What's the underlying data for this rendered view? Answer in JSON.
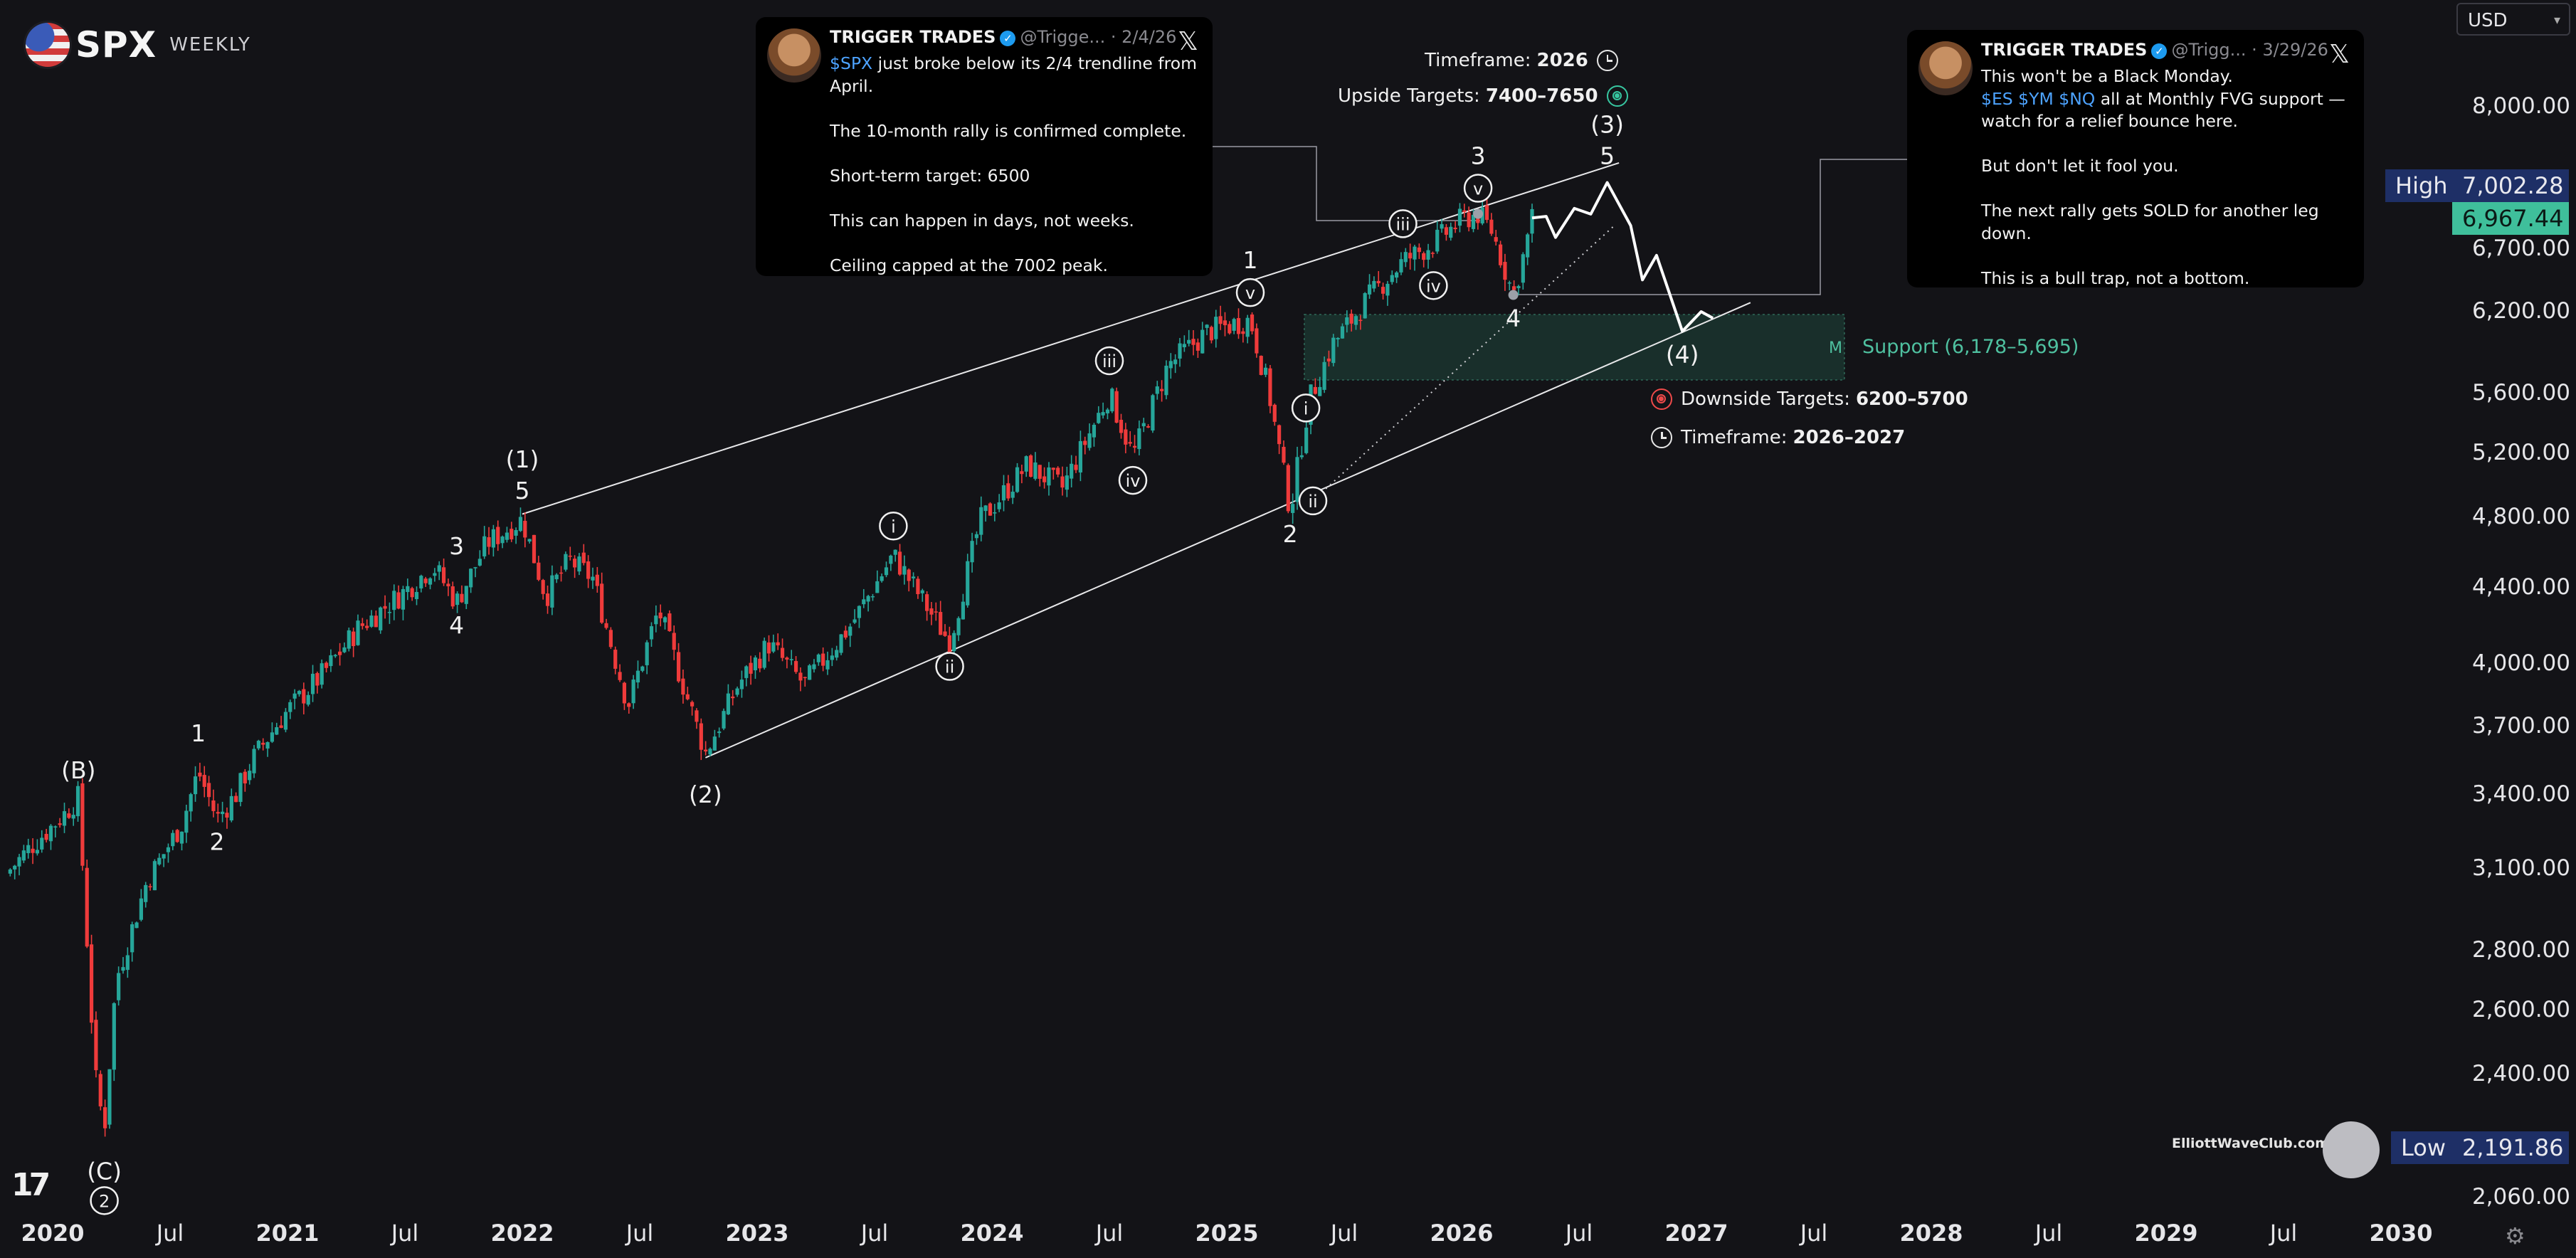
{
  "header": {
    "brand": "SPX",
    "subtitle": "WEEKLY"
  },
  "currency_select": {
    "value": "USD"
  },
  "price_tags": {
    "high_label": "High",
    "high_value": "7,002.28",
    "last_value": "6,967.44",
    "low_label": "Low",
    "low_value": "2,191.86"
  },
  "tweets": [
    {
      "author": "TRIGGER TRADES",
      "handle": "@Trigge...",
      "date": "2/4/26",
      "ticker": "$SPX",
      "text": " just broke below its 2/4 trendline from April.\n\nThe 10-month rally is confirmed complete.\n\nShort-term target: 6500\n\nThis can happen in days, not weeks.\n\nCeiling capped at the 7002 peak."
    },
    {
      "author": "TRIGGER TRADES",
      "handle": "@Trigg...",
      "date": "3/29/26",
      "line1": "This won't be a Black Monday.",
      "tickers": "$ES $YM $NQ",
      "text": " all at Monthly FVG support — watch for a relief bounce here.\n\nBut don't let it fool you.\n\nThe next rally gets SOLD for another leg down.\n\nThis is a bull trap, not a bottom."
    }
  ],
  "annotations": {
    "upside_timeframe_label": "Timeframe:",
    "upside_timeframe_value": "2026",
    "upside_targets_label": "Upside Targets:",
    "upside_targets_value": "7400–7650",
    "downside_targets_label": "Downside Targets:",
    "downside_targets_value": "6200–5700",
    "downside_timeframe_label": "Timeframe:",
    "downside_timeframe_value": "2026–2027",
    "support_label": "Support (6,178–5,695)",
    "support_marker": "M"
  },
  "watermark": {
    "text": "ElliottWaveClub.com"
  },
  "chart_data": {
    "type": "candlestick",
    "title": "SPX",
    "interval": "WEEKLY",
    "currency": "USD",
    "y_scale": "log",
    "y_ticks": [
      2060,
      2400,
      2600,
      2800,
      3100,
      3400,
      3700,
      4000,
      4400,
      4800,
      5200,
      5600,
      6200,
      6700,
      8000
    ],
    "y_tick_labels": [
      "2,060.00",
      "2,400.00",
      "2,600.00",
      "2,800.00",
      "3,100.00",
      "3,400.00",
      "3,700.00",
      "4,000.00",
      "4,400.00",
      "4,800.00",
      "5,200.00",
      "5,600.00",
      "6,200.00",
      "6,700.00",
      "8,000.00"
    ],
    "x_ticks": [
      {
        "t": 2020.0,
        "label": "2020",
        "year": true
      },
      {
        "t": 2020.5,
        "label": "Jul"
      },
      {
        "t": 2021.0,
        "label": "2021",
        "year": true
      },
      {
        "t": 2021.5,
        "label": "Jul"
      },
      {
        "t": 2022.0,
        "label": "2022",
        "year": true
      },
      {
        "t": 2022.5,
        "label": "Jul"
      },
      {
        "t": 2023.0,
        "label": "2023",
        "year": true
      },
      {
        "t": 2023.5,
        "label": "Jul"
      },
      {
        "t": 2024.0,
        "label": "2024",
        "year": true
      },
      {
        "t": 2024.5,
        "label": "Jul"
      },
      {
        "t": 2025.0,
        "label": "2025",
        "year": true
      },
      {
        "t": 2025.5,
        "label": "Jul"
      },
      {
        "t": 2026.0,
        "label": "2026",
        "year": true
      },
      {
        "t": 2026.5,
        "label": "Jul"
      },
      {
        "t": 2027.0,
        "label": "2027",
        "year": true
      },
      {
        "t": 2027.5,
        "label": "Jul"
      },
      {
        "t": 2028.0,
        "label": "2028",
        "year": true
      },
      {
        "t": 2028.5,
        "label": "Jul"
      },
      {
        "t": 2029.0,
        "label": "2029",
        "year": true
      },
      {
        "t": 2029.5,
        "label": "Jul"
      },
      {
        "t": 2030.0,
        "label": "2030",
        "year": true
      }
    ],
    "price_path": [
      [
        2019.8,
        3080
      ],
      [
        2019.92,
        3200
      ],
      [
        2020.05,
        3320
      ],
      [
        2020.11,
        3390
      ],
      [
        2020.18,
        2400
      ],
      [
        2020.22,
        2240
      ],
      [
        2020.27,
        2700
      ],
      [
        2020.4,
        3050
      ],
      [
        2020.55,
        3280
      ],
      [
        2020.62,
        3500
      ],
      [
        2020.7,
        3300
      ],
      [
        2020.78,
        3400
      ],
      [
        2020.85,
        3550
      ],
      [
        2020.98,
        3750
      ],
      [
        2021.15,
        3950
      ],
      [
        2021.3,
        4180
      ],
      [
        2021.5,
        4380
      ],
      [
        2021.62,
        4520
      ],
      [
        2021.72,
        4320
      ],
      [
        2021.85,
        4650
      ],
      [
        2022.0,
        4790
      ],
      [
        2022.1,
        4350
      ],
      [
        2022.2,
        4550
      ],
      [
        2022.3,
        4450
      ],
      [
        2022.45,
        3800
      ],
      [
        2022.58,
        4280
      ],
      [
        2022.78,
        3580
      ],
      [
        2022.92,
        3900
      ],
      [
        2023.05,
        4100
      ],
      [
        2023.2,
        3900
      ],
      [
        2023.4,
        4200
      ],
      [
        2023.58,
        4580
      ],
      [
        2023.82,
        4110
      ],
      [
        2023.95,
        4780
      ],
      [
        2024.15,
        5120
      ],
      [
        2024.3,
        4980
      ],
      [
        2024.5,
        5600
      ],
      [
        2024.6,
        5180
      ],
      [
        2024.75,
        5800
      ],
      [
        2024.92,
        6050
      ],
      [
        2025.1,
        6140
      ],
      [
        2025.18,
        5600
      ],
      [
        2025.27,
        4840
      ],
      [
        2025.35,
        5550
      ],
      [
        2025.45,
        5950
      ],
      [
        2025.6,
        6300
      ],
      [
        2025.75,
        6600
      ],
      [
        2025.88,
        6750
      ],
      [
        2026.0,
        6950
      ],
      [
        2026.07,
        7002
      ],
      [
        2026.13,
        6850
      ],
      [
        2026.22,
        6330
      ],
      [
        2026.27,
        6700
      ],
      [
        2026.3,
        6967
      ]
    ],
    "projection_path": [
      [
        2026.3,
        6967
      ],
      [
        2026.36,
        6980
      ],
      [
        2026.4,
        6800
      ],
      [
        2026.48,
        7050
      ],
      [
        2026.55,
        7000
      ],
      [
        2026.62,
        7280
      ],
      [
        2026.72,
        6900
      ],
      [
        2026.77,
        6450
      ],
      [
        2026.83,
        6650
      ],
      [
        2026.94,
        6050
      ],
      [
        2027.02,
        6200
      ],
      [
        2027.07,
        6150
      ]
    ],
    "trendlines": [
      {
        "from": [
          2022.0,
          4820
        ],
        "to": [
          2026.67,
          7460
        ]
      },
      {
        "from": [
          2022.78,
          3560
        ],
        "to": [
          2027.23,
          6270
        ]
      },
      {
        "from": [
          2025.35,
          4880
        ],
        "to": [
          2026.65,
          6900
        ],
        "style": "dotted"
      }
    ],
    "support_zone": {
      "from": 2025.33,
      "to": 2027.63,
      "low": 5695,
      "high": 6178
    },
    "wave_labels": [
      {
        "t": 2020.11,
        "p": 3390,
        "text": "(B)",
        "pos": "above"
      },
      {
        "t": 2020.22,
        "p": 2191,
        "text": "(C)",
        "pos": "below"
      },
      {
        "t": 2020.22,
        "p": 2191,
        "text": "2",
        "pos": "below2",
        "circled": true
      },
      {
        "t": 2020.62,
        "p": 3550,
        "text": "1",
        "pos": "above"
      },
      {
        "t": 2020.7,
        "p": 3300,
        "text": "2",
        "pos": "below"
      },
      {
        "t": 2021.72,
        "p": 4480,
        "text": "3",
        "pos": "above"
      },
      {
        "t": 2021.72,
        "p": 4320,
        "text": "4",
        "pos": "below"
      },
      {
        "t": 2022.0,
        "p": 4800,
        "text": "(1)",
        "pos": "above2"
      },
      {
        "t": 2022.0,
        "p": 4800,
        "text": "5",
        "pos": "above"
      },
      {
        "t": 2022.78,
        "p": 3500,
        "text": "(2)",
        "pos": "below"
      },
      {
        "t": 2023.58,
        "p": 4600,
        "text": "i",
        "pos": "above",
        "circled": true
      },
      {
        "t": 2023.82,
        "p": 4110,
        "text": "ii",
        "pos": "below",
        "circled": true
      },
      {
        "t": 2024.5,
        "p": 5650,
        "text": "iii",
        "pos": "above",
        "circled": true
      },
      {
        "t": 2024.6,
        "p": 5180,
        "text": "iv",
        "pos": "below",
        "circled": true
      },
      {
        "t": 2025.1,
        "p": 6150,
        "text": "v",
        "pos": "above",
        "circled": true
      },
      {
        "t": 2025.1,
        "p": 6150,
        "text": "1",
        "pos": "above2"
      },
      {
        "t": 2025.27,
        "p": 5500,
        "text": "i",
        "pos": "right",
        "circled": true
      },
      {
        "t": 2025.3,
        "p": 4900,
        "text": "ii",
        "pos": "right",
        "circled": true
      },
      {
        "t": 2025.27,
        "p": 4840,
        "text": "2",
        "pos": "below"
      },
      {
        "t": 2025.75,
        "p": 6700,
        "text": "iii",
        "pos": "above",
        "circled": true
      },
      {
        "t": 2025.88,
        "p": 6600,
        "text": "iv",
        "pos": "below",
        "circled": true
      },
      {
        "t": 2026.07,
        "p": 7002,
        "text": "v",
        "pos": "above",
        "circled": true
      },
      {
        "t": 2026.07,
        "p": 7002,
        "text": "3",
        "pos": "above2"
      },
      {
        "t": 2026.22,
        "p": 6330,
        "text": "4",
        "pos": "below"
      },
      {
        "t": 2026.62,
        "p": 7280,
        "text": "5",
        "pos": "above"
      },
      {
        "t": 2026.62,
        "p": 7280,
        "text": "(3)",
        "pos": "above2"
      },
      {
        "t": 2026.94,
        "p": 6050,
        "text": "(4)",
        "pos": "below"
      }
    ],
    "colors": {
      "up": "#26a69a",
      "down": "#ef3b3b",
      "support_fill": "#1c3a33",
      "support_edge": "#2f6b5a",
      "price_tag": "#3fbf9b",
      "high_low_tag": "#1e2f66"
    }
  }
}
